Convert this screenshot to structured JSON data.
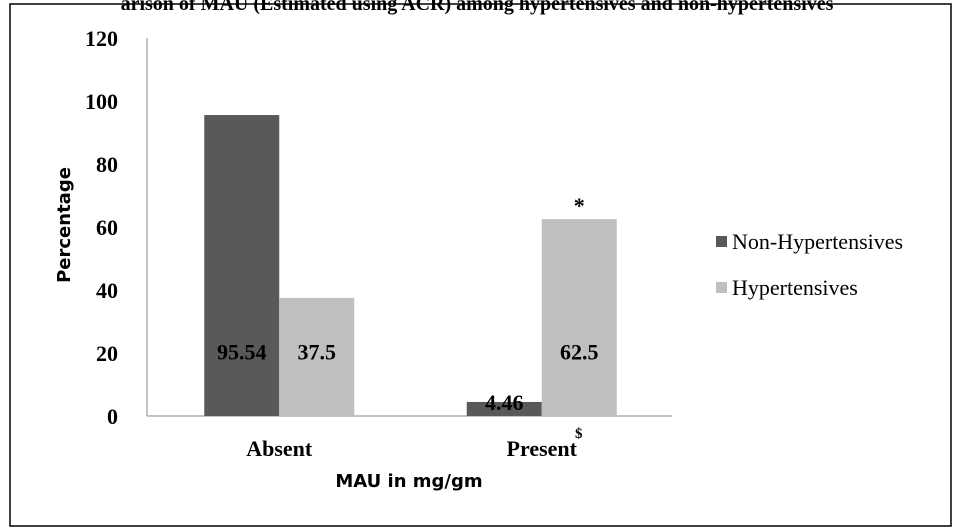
{
  "chart_data": {
    "type": "bar",
    "title": "arison of MAU (Estimated using ACR) among hypertensives and non-hypertensives",
    "xlabel": "MAU in mg/gm",
    "ylabel": "Percentage",
    "categories": [
      "Absent",
      "Present"
    ],
    "ylim": [
      0,
      120
    ],
    "yticks": [
      "0",
      "20",
      "40",
      "60",
      "80",
      "100",
      "120"
    ],
    "grid": false,
    "legend_position": "right",
    "series": [
      {
        "name": "Non-Hypertensives",
        "color": "#595959",
        "values": [
          95.54,
          4.46
        ],
        "labels": [
          "95.54",
          "4.46"
        ]
      },
      {
        "name": "Hypertensives",
        "color": "#bfbfbf",
        "values": [
          37.5,
          62.5
        ],
        "labels": [
          "37.5",
          "62.5"
        ]
      }
    ],
    "annotations": [
      {
        "text": "*",
        "category": "Present",
        "series": "Hypertensives"
      },
      {
        "text": "$",
        "category": "Present",
        "series": "Category label"
      }
    ]
  }
}
